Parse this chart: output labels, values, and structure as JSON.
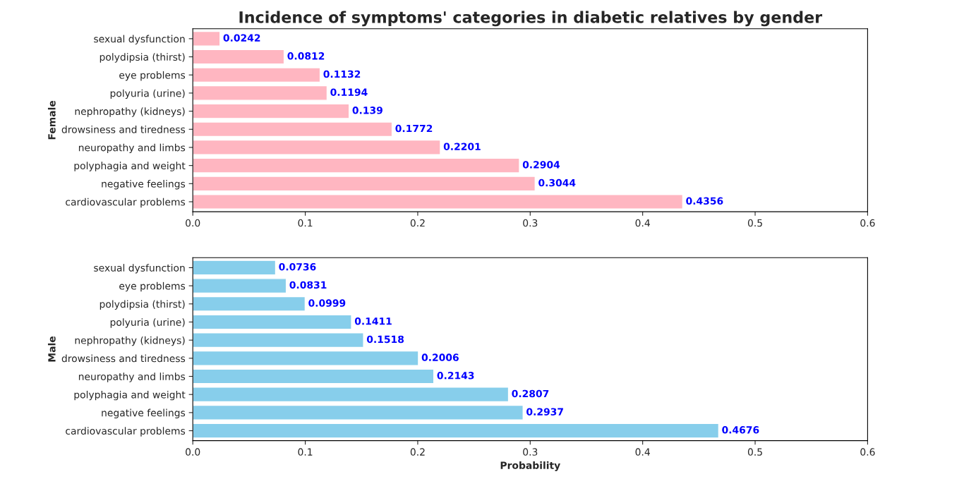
{
  "chart_data": [
    {
      "type": "bar",
      "orientation": "horizontal",
      "title": "Incidence of symptoms' categories in diabetic relatives by gender",
      "ylabel": "Female",
      "categories": [
        "sexual dysfunction",
        "polydipsia (thirst)",
        "eye problems",
        "polyuria (urine)",
        "nephropathy (kidneys)",
        "drowsiness and tiredness",
        "neuropathy and limbs",
        "polyphagia and weight",
        "negative feelings",
        "cardiovascular problems"
      ],
      "series": [
        {
          "color": "#ffb6c1",
          "values": [
            0.0242,
            0.0812,
            0.1132,
            0.1194,
            0.139,
            0.1772,
            0.2201,
            0.2904,
            0.3044,
            0.4356
          ]
        }
      ],
      "xlim": [
        0,
        0.6
      ],
      "xticks": [
        {
          "value": 0,
          "label": "0.0"
        },
        0.1,
        0.2,
        0.3,
        0.4,
        0.5,
        0.6
      ],
      "data_labels": true,
      "grid": false,
      "legend": false
    },
    {
      "type": "bar",
      "orientation": "horizontal",
      "ylabel": "Male",
      "xlabel": "Probability",
      "categories": [
        "sexual dysfunction",
        "eye problems",
        "polydipsia (thirst)",
        "polyuria (urine)",
        "nephropathy (kidneys)",
        "drowsiness and tiredness",
        "neuropathy and limbs",
        "polyphagia and weight",
        "negative feelings",
        "cardiovascular problems"
      ],
      "series": [
        {
          "color": "#87ceeb",
          "values": [
            0.0736,
            0.0831,
            0.0999,
            0.1411,
            0.1518,
            0.2006,
            0.2143,
            0.2807,
            0.2937,
            0.4676
          ]
        }
      ],
      "xlim": [
        0,
        0.6
      ],
      "xticks": [
        {
          "value": 0,
          "label": "0.0"
        },
        0.1,
        0.2,
        0.3,
        0.4,
        0.5,
        0.6
      ],
      "data_labels": true,
      "grid": false,
      "legend": false
    }
  ]
}
